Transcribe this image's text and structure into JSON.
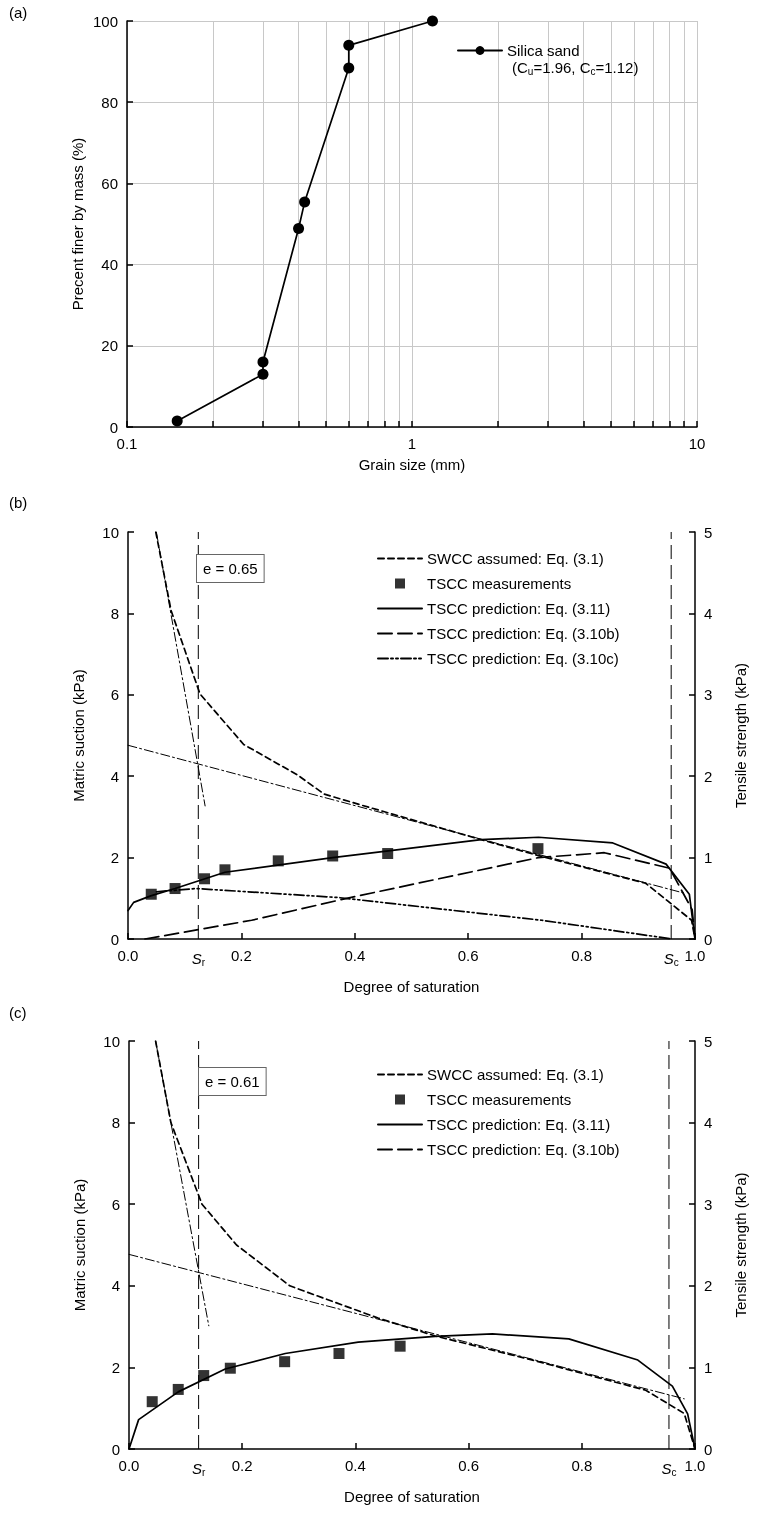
{
  "chart_data": [
    {
      "type": "line",
      "title": "(a)",
      "xlabel": "Grain size (mm)",
      "ylabel": "Precent finer by mass (%)",
      "log": "x",
      "grid": true,
      "legend": "top right",
      "xlim": [
        0.1,
        10
      ],
      "xticks": [
        0.1,
        {
          "value": 0.2,
          "label": null
        },
        {
          "value": 0.3,
          "label": null
        },
        {
          "value": 0.4,
          "label": null
        },
        {
          "value": 0.5,
          "label": null
        },
        {
          "value": 0.6,
          "label": null
        },
        {
          "value": 0.7,
          "label": null
        },
        {
          "value": 0.8,
          "label": null
        },
        {
          "value": 0.9,
          "label": null
        },
        1,
        {
          "value": 2,
          "label": null
        },
        {
          "value": 3,
          "label": null
        },
        {
          "value": 4,
          "label": null
        },
        {
          "value": 5,
          "label": null
        },
        {
          "value": 6,
          "label": null
        },
        {
          "value": 7,
          "label": null
        },
        {
          "value": 8,
          "label": null
        },
        {
          "value": 9,
          "label": null
        },
        10
      ],
      "ylim": [
        0,
        100
      ],
      "yticks": [
        0,
        20,
        40,
        60,
        80,
        100
      ],
      "annotations": [
        "(C$_{u}$=1.96, C$_{c}$=1.12)"
      ],
      "series": [
        {
          "name": "Silica sand",
          "type": "line",
          "color": "#000000",
          "marker": "circle",
          "line_style": "solid",
          "x": [
            0.15,
            0.3,
            0.3,
            0.4,
            0.42,
            0.6,
            0.6,
            1.18
          ],
          "values": [
            1.5,
            13.0,
            16.0,
            48.9,
            55.4,
            88.4,
            94.0,
            100
          ]
        }
      ]
    },
    {
      "type": "line",
      "title": "(b)",
      "xlabel": "Degree of saturation",
      "ylabel": "Matric suction (kPa)",
      "y2label": "Tensile strength (kPa)",
      "legend": "top right",
      "xlim": [
        0,
        1
      ],
      "xticks": [
        {
          "value": 0,
          "label": "0.0"
        },
        0.2,
        0.4,
        0.6,
        0.8,
        {
          "value": 1,
          "label": "1.0"
        }
      ],
      "ylim": [
        0,
        10
      ],
      "yticks": [
        0,
        2,
        4,
        6,
        8,
        10
      ],
      "y2lim": [
        0,
        5
      ],
      "y2ticks": [
        0,
        1,
        2,
        3,
        4,
        5
      ],
      "annotations": [
        "e = 0.65"
      ],
      "ref_lines": [
        {
          "axis": "x",
          "value": 0.124,
          "label": "S$_{r}$",
          "line_style": "longdash"
        },
        {
          "axis": "x",
          "value": 0.958,
          "label": "S$_{c}$",
          "line_style": "longdash"
        }
      ],
      "series": [
        {
          "name": "SWCC assumed: Eq. (3.1)",
          "type": "line",
          "color": "#000000",
          "axis": "y",
          "line_style": "dashed",
          "marker": "none",
          "x": [
            0.049,
            0.076,
            0.127,
            0.204,
            0.299,
            0.346,
            0.414,
            0.556,
            0.623,
            0.724,
            0.913,
            0.994,
            1.0
          ],
          "values": [
            10,
            8.07,
            6.02,
            4.78,
            4.03,
            3.56,
            3.28,
            2.71,
            2.44,
            2.05,
            1.37,
            0.46,
            0
          ]
        },
        {
          "name": "TSCC measurements",
          "type": "scatter",
          "color": "#000000",
          "axis": "y2",
          "marker": "square",
          "x": [
            0.041,
            0.083,
            0.135,
            0.171,
            0.265,
            0.361,
            0.458,
            0.723
          ],
          "values": [
            0.55,
            0.62,
            0.74,
            0.85,
            0.96,
            1.02,
            1.05,
            1.11
          ]
        },
        {
          "name": "TSCC prediction: Eq. (3.11)",
          "type": "line",
          "color": "#000000",
          "axis": "y2",
          "line_style": "solid",
          "marker": "none",
          "x": [
            0,
            0.01,
            0.04,
            0.083,
            0.171,
            0.361,
            0.623,
            0.724,
            0.855,
            0.949,
            0.99,
            1.0
          ],
          "values": [
            0.35,
            0.45,
            0.53,
            0.62,
            0.82,
            1.0,
            1.22,
            1.25,
            1.18,
            0.92,
            0.55,
            0
          ]
        },
        {
          "name": "TSCC prediction: Eq. (3.10b)",
          "type": "line",
          "color": "#000000",
          "axis": "y2",
          "line_style": "longdash",
          "marker": "none",
          "x": [
            0.03,
            0.218,
            0.386,
            0.724,
            0.84,
            0.955,
            0.995,
            1.0
          ],
          "values": [
            0,
            0.23,
            0.5,
            1.0,
            1.06,
            0.87,
            0.36,
            0
          ]
        },
        {
          "name": "TSCC prediction: Eq. (3.10c)",
          "type": "line",
          "color": "#000000",
          "axis": "y2",
          "line_style": "dashdotdot",
          "marker": "none",
          "x": [
            0.05,
            0.12,
            0.37,
            0.73,
            0.96
          ],
          "values": [
            0.58,
            0.62,
            0.51,
            0.23,
            0
          ]
        },
        {
          "type": "line",
          "color": "#000000",
          "axis": "y",
          "line_style": "dashdot",
          "marker": "none",
          "x": [
            0,
            0.98
          ],
          "values": [
            4.76,
            1.13
          ]
        },
        {
          "type": "line",
          "color": "#000000",
          "axis": "y",
          "line_style": "dashdot",
          "marker": "none",
          "x": [
            0.05,
            0.136
          ],
          "values": [
            10,
            3.27
          ]
        }
      ]
    },
    {
      "type": "line",
      "title": "(c)",
      "xlabel": "Degree of saturation",
      "ylabel": "Matric suction (kPa)",
      "y2label": "Tensile strength (kPa)",
      "legend": "top right",
      "xlim": [
        0,
        1
      ],
      "xticks": [
        {
          "value": 0,
          "label": "0.0"
        },
        0.2,
        0.4,
        0.6,
        0.8,
        {
          "value": 1,
          "label": "1.0"
        }
      ],
      "ylim": [
        0,
        10
      ],
      "yticks": [
        0,
        2,
        4,
        6,
        8,
        10
      ],
      "y2lim": [
        0,
        5
      ],
      "y2ticks": [
        0,
        1,
        2,
        3,
        4,
        5
      ],
      "annotations": [
        "e = 0.61"
      ],
      "ref_lines": [
        {
          "axis": "x",
          "value": 0.123,
          "label": "S$_{r}$",
          "line_style": "longdash"
        },
        {
          "axis": "x",
          "value": 0.954,
          "label": "S$_{c}$",
          "line_style": "longdash"
        }
      ],
      "series": [
        {
          "name": "SWCC assumed: Eq. (3.1)",
          "type": "line",
          "color": "#000000",
          "axis": "y",
          "line_style": "dashed",
          "marker": "none",
          "x": [
            0.047,
            0.074,
            0.129,
            0.19,
            0.284,
            0.44,
            0.541,
            0.71,
            0.913,
            0.981,
            1.0
          ],
          "values": [
            10,
            8,
            6,
            5,
            4,
            3.21,
            2.77,
            2.19,
            1.44,
            0.87,
            0
          ]
        },
        {
          "name": "TSCC measurements",
          "type": "scatter",
          "color": "#000000",
          "axis": "y2",
          "marker": "square",
          "x": [
            0.041,
            0.087,
            0.132,
            0.179,
            0.275,
            0.371,
            0.479
          ],
          "values": [
            0.58,
            0.73,
            0.9,
            0.99,
            1.07,
            1.17,
            1.26
          ]
        },
        {
          "name": "TSCC prediction: Eq. (3.11)",
          "type": "line",
          "color": "#000000",
          "axis": "y2",
          "line_style": "solid",
          "marker": "none",
          "x": [
            0,
            0.017,
            0.087,
            0.17,
            0.276,
            0.405,
            0.541,
            0.642,
            0.777,
            0.899,
            0.96,
            0.987,
            1.0
          ],
          "values": [
            0,
            0.36,
            0.7,
            0.98,
            1.17,
            1.31,
            1.38,
            1.41,
            1.35,
            1.09,
            0.77,
            0.43,
            0
          ]
        },
        {
          "name": "TSCC prediction: Eq. (3.10b)",
          "type": "line",
          "color": "#000000",
          "axis": "y2",
          "line_style": "longdash",
          "marker": "none"
        },
        {
          "type": "line",
          "color": "#000000",
          "axis": "y",
          "line_style": "dashdot",
          "marker": "none",
          "x": [
            0,
            0.981
          ],
          "values": [
            4.77,
            1.23
          ]
        },
        {
          "type": "line",
          "color": "#000000",
          "axis": "y",
          "line_style": "dashdot",
          "marker": "none",
          "x": [
            0.047,
            0.141
          ],
          "values": [
            10,
            3.02
          ]
        }
      ]
    }
  ]
}
